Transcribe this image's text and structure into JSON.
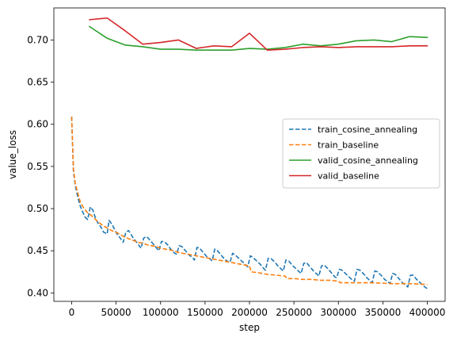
{
  "chart_data": {
    "type": "line",
    "title": "",
    "xlabel": "step",
    "ylabel": "value_loss",
    "xlim": [
      -20000,
      420000
    ],
    "ylim": [
      0.39,
      0.738
    ],
    "xticks": [
      0,
      50000,
      100000,
      150000,
      200000,
      250000,
      300000,
      350000,
      400000
    ],
    "xtick_labels": [
      "0",
      "50000",
      "100000",
      "150000",
      "200000",
      "250000",
      "300000",
      "350000",
      "400000"
    ],
    "yticks": [
      0.4,
      0.45,
      0.5,
      0.55,
      0.6,
      0.65,
      0.7
    ],
    "ytick_labels": [
      "0.40",
      "0.45",
      "0.50",
      "0.55",
      "0.60",
      "0.65",
      "0.70"
    ],
    "grid": false,
    "legend_position": "right",
    "series": [
      {
        "name": "train_cosine_annealing",
        "color": "#1f77b4",
        "style": "dashed",
        "points": [
          [
            0,
            0.609
          ],
          [
            2000,
            0.545
          ],
          [
            4000,
            0.528
          ],
          [
            6000,
            0.518
          ],
          [
            9000,
            0.505
          ],
          [
            12000,
            0.497
          ],
          [
            15000,
            0.49
          ],
          [
            18000,
            0.487
          ],
          [
            21000,
            0.502
          ],
          [
            24000,
            0.498
          ],
          [
            27000,
            0.488
          ],
          [
            30000,
            0.482
          ],
          [
            33000,
            0.478
          ],
          [
            36000,
            0.472
          ],
          [
            40000,
            0.47
          ],
          [
            42000,
            0.486
          ],
          [
            45000,
            0.482
          ],
          [
            48000,
            0.476
          ],
          [
            51000,
            0.47
          ],
          [
            54000,
            0.466
          ],
          [
            58000,
            0.46
          ],
          [
            61000,
            0.472
          ],
          [
            64000,
            0.474
          ],
          [
            67000,
            0.469
          ],
          [
            70000,
            0.464
          ],
          [
            74000,
            0.459
          ],
          [
            78000,
            0.453
          ],
          [
            81000,
            0.465
          ],
          [
            84000,
            0.467
          ],
          [
            87000,
            0.464
          ],
          [
            91000,
            0.459
          ],
          [
            95000,
            0.454
          ],
          [
            98000,
            0.45
          ],
          [
            101000,
            0.461
          ],
          [
            104000,
            0.461
          ],
          [
            108000,
            0.457
          ],
          [
            112000,
            0.451
          ],
          [
            116000,
            0.447
          ],
          [
            118000,
            0.446
          ],
          [
            121000,
            0.456
          ],
          [
            124000,
            0.455
          ],
          [
            128000,
            0.45
          ],
          [
            132000,
            0.445
          ],
          [
            136000,
            0.442
          ],
          [
            138000,
            0.439
          ],
          [
            141000,
            0.454
          ],
          [
            144000,
            0.453
          ],
          [
            148000,
            0.448
          ],
          [
            152000,
            0.443
          ],
          [
            156000,
            0.44
          ],
          [
            158000,
            0.438
          ],
          [
            161000,
            0.452
          ],
          [
            164000,
            0.45
          ],
          [
            168000,
            0.445
          ],
          [
            172000,
            0.44
          ],
          [
            176000,
            0.437
          ],
          [
            178000,
            0.436
          ],
          [
            181000,
            0.447
          ],
          [
            184000,
            0.445
          ],
          [
            188000,
            0.441
          ],
          [
            192000,
            0.437
          ],
          [
            196000,
            0.433
          ],
          [
            198000,
            0.431
          ],
          [
            201000,
            0.444
          ],
          [
            204000,
            0.442
          ],
          [
            208000,
            0.438
          ],
          [
            212000,
            0.434
          ],
          [
            216000,
            0.429
          ],
          [
            218000,
            0.427
          ],
          [
            221000,
            0.441
          ],
          [
            224000,
            0.441
          ],
          [
            228000,
            0.437
          ],
          [
            232000,
            0.432
          ],
          [
            236000,
            0.428
          ],
          [
            238000,
            0.426
          ],
          [
            241000,
            0.439
          ],
          [
            244000,
            0.438
          ],
          [
            248000,
            0.433
          ],
          [
            252000,
            0.429
          ],
          [
            256000,
            0.425
          ],
          [
            258000,
            0.423
          ],
          [
            261000,
            0.435
          ],
          [
            264000,
            0.436
          ],
          [
            268000,
            0.431
          ],
          [
            272000,
            0.426
          ],
          [
            276000,
            0.422
          ],
          [
            278000,
            0.42
          ],
          [
            281000,
            0.432
          ],
          [
            284000,
            0.433
          ],
          [
            288000,
            0.429
          ],
          [
            292000,
            0.424
          ],
          [
            296000,
            0.419
          ],
          [
            298000,
            0.418
          ],
          [
            301000,
            0.428
          ],
          [
            304000,
            0.427
          ],
          [
            308000,
            0.423
          ],
          [
            312000,
            0.419
          ],
          [
            316000,
            0.415
          ],
          [
            318000,
            0.414
          ],
          [
            321000,
            0.428
          ],
          [
            324000,
            0.427
          ],
          [
            328000,
            0.423
          ],
          [
            332000,
            0.418
          ],
          [
            336000,
            0.414
          ],
          [
            338000,
            0.412
          ],
          [
            341000,
            0.426
          ],
          [
            344000,
            0.425
          ],
          [
            348000,
            0.421
          ],
          [
            352000,
            0.416
          ],
          [
            356000,
            0.413
          ],
          [
            358000,
            0.411
          ],
          [
            361000,
            0.423
          ],
          [
            364000,
            0.422
          ],
          [
            368000,
            0.417
          ],
          [
            372000,
            0.412
          ],
          [
            376000,
            0.409
          ],
          [
            378000,
            0.407
          ],
          [
            381000,
            0.421
          ],
          [
            384000,
            0.421
          ],
          [
            388000,
            0.416
          ],
          [
            392000,
            0.412
          ],
          [
            396000,
            0.408
          ],
          [
            400000,
            0.405
          ]
        ]
      },
      {
        "name": "train_baseline",
        "color": "#ff7f0e",
        "style": "dashed",
        "points": [
          [
            0,
            0.609
          ],
          [
            2000,
            0.548
          ],
          [
            4000,
            0.53
          ],
          [
            7000,
            0.518
          ],
          [
            10000,
            0.507
          ],
          [
            14000,
            0.5
          ],
          [
            18000,
            0.495
          ],
          [
            22000,
            0.492
          ],
          [
            26000,
            0.488
          ],
          [
            30000,
            0.484
          ],
          [
            35000,
            0.48
          ],
          [
            40000,
            0.477
          ],
          [
            45000,
            0.474
          ],
          [
            50000,
            0.472
          ],
          [
            55000,
            0.469
          ],
          [
            60000,
            0.466
          ],
          [
            65000,
            0.464
          ],
          [
            70000,
            0.462
          ],
          [
            75000,
            0.46
          ],
          [
            80000,
            0.459
          ],
          [
            85000,
            0.457
          ],
          [
            90000,
            0.456
          ],
          [
            95000,
            0.455
          ],
          [
            100000,
            0.453
          ],
          [
            105000,
            0.452
          ],
          [
            110000,
            0.451
          ],
          [
            115000,
            0.45
          ],
          [
            120000,
            0.448
          ],
          [
            125000,
            0.447
          ],
          [
            130000,
            0.446
          ],
          [
            135000,
            0.445
          ],
          [
            140000,
            0.444
          ],
          [
            145000,
            0.443
          ],
          [
            150000,
            0.442
          ],
          [
            155000,
            0.441
          ],
          [
            160000,
            0.44
          ],
          [
            165000,
            0.439
          ],
          [
            170000,
            0.438
          ],
          [
            175000,
            0.437
          ],
          [
            180000,
            0.436
          ],
          [
            185000,
            0.435
          ],
          [
            190000,
            0.434
          ],
          [
            195000,
            0.433
          ],
          [
            200000,
            0.432
          ],
          [
            202000,
            0.425
          ],
          [
            210000,
            0.424
          ],
          [
            220000,
            0.422
          ],
          [
            230000,
            0.421
          ],
          [
            240000,
            0.42
          ],
          [
            242000,
            0.417
          ],
          [
            250000,
            0.417
          ],
          [
            260000,
            0.416
          ],
          [
            270000,
            0.416
          ],
          [
            280000,
            0.415
          ],
          [
            290000,
            0.415
          ],
          [
            300000,
            0.414
          ],
          [
            302000,
            0.412
          ],
          [
            320000,
            0.412
          ],
          [
            340000,
            0.412
          ],
          [
            360000,
            0.411
          ],
          [
            380000,
            0.411
          ],
          [
            400000,
            0.41
          ]
        ]
      },
      {
        "name": "valid_cosine_annealing",
        "color": "#2ca02c",
        "style": "solid",
        "points": [
          [
            20000,
            0.716
          ],
          [
            40000,
            0.702
          ],
          [
            60000,
            0.694
          ],
          [
            80000,
            0.692
          ],
          [
            100000,
            0.689
          ],
          [
            120000,
            0.689
          ],
          [
            140000,
            0.688
          ],
          [
            160000,
            0.688
          ],
          [
            180000,
            0.688
          ],
          [
            200000,
            0.69
          ],
          [
            220000,
            0.689
          ],
          [
            240000,
            0.691
          ],
          [
            260000,
            0.695
          ],
          [
            280000,
            0.693
          ],
          [
            300000,
            0.695
          ],
          [
            320000,
            0.699
          ],
          [
            340000,
            0.7
          ],
          [
            360000,
            0.698
          ],
          [
            380000,
            0.704
          ],
          [
            400000,
            0.703
          ]
        ]
      },
      {
        "name": "valid_baseline",
        "color": "#d62728",
        "style": "solid",
        "points": [
          [
            20000,
            0.724
          ],
          [
            40000,
            0.726
          ],
          [
            60000,
            0.711
          ],
          [
            80000,
            0.695
          ],
          [
            100000,
            0.697
          ],
          [
            120000,
            0.7
          ],
          [
            140000,
            0.69
          ],
          [
            160000,
            0.693
          ],
          [
            180000,
            0.692
          ],
          [
            200000,
            0.708
          ],
          [
            220000,
            0.688
          ],
          [
            240000,
            0.689
          ],
          [
            260000,
            0.691
          ],
          [
            280000,
            0.692
          ],
          [
            300000,
            0.691
          ],
          [
            320000,
            0.692
          ],
          [
            340000,
            0.692
          ],
          [
            360000,
            0.692
          ],
          [
            380000,
            0.693
          ],
          [
            400000,
            0.693
          ]
        ]
      }
    ]
  }
}
